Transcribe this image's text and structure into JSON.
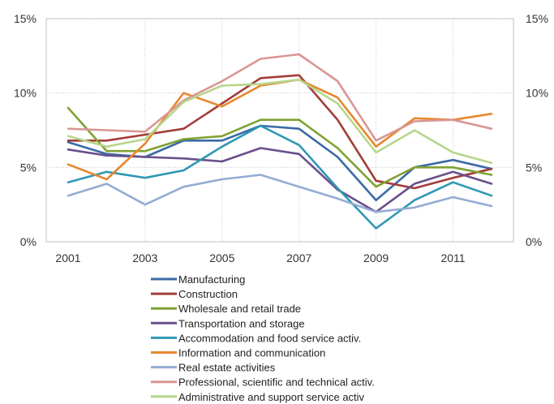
{
  "chart_data": {
    "type": "line",
    "title": "",
    "xlabel": "",
    "ylabel": "",
    "x": [
      2001,
      2002,
      2003,
      2004,
      2005,
      2006,
      2007,
      2008,
      2009,
      2010,
      2011,
      2012
    ],
    "xticks": [
      2001,
      2003,
      2005,
      2007,
      2009,
      2011
    ],
    "xtick_labels": [
      "2001",
      "2003",
      "2005",
      "2007",
      "2009",
      "2011"
    ],
    "ylim": [
      0,
      15
    ],
    "yticks": [
      0,
      5,
      10,
      15
    ],
    "ytick_labels": [
      "0%",
      "5%",
      "10%",
      "15%"
    ],
    "secondary_ytick_labels": [
      "0%",
      "5%",
      "10%",
      "15%"
    ],
    "grid": "dotted",
    "legend_position": "bottom",
    "series": [
      {
        "name": "Manufacturing",
        "color": "#3a6aa5",
        "values": [
          6.7,
          5.9,
          5.7,
          6.8,
          6.8,
          7.8,
          7.6,
          5.7,
          2.8,
          5.0,
          5.5,
          4.9
        ]
      },
      {
        "name": "Construction",
        "color": "#a33c38",
        "values": [
          6.8,
          6.8,
          7.2,
          7.6,
          9.3,
          11.0,
          11.2,
          8.2,
          4.1,
          3.6,
          4.3,
          4.9
        ]
      },
      {
        "name": "Wholesale and retail trade",
        "color": "#7fa233",
        "values": [
          9.0,
          6.1,
          6.1,
          6.9,
          7.1,
          8.2,
          8.2,
          6.3,
          3.7,
          5.0,
          5.0,
          4.5
        ]
      },
      {
        "name": "Transportation and storage",
        "color": "#6a4f8c",
        "values": [
          6.2,
          5.8,
          5.7,
          5.6,
          5.4,
          6.3,
          5.9,
          3.5,
          2.0,
          3.9,
          4.7,
          3.9
        ]
      },
      {
        "name": "Accommodation and food service activ.",
        "color": "#2f98b4",
        "values": [
          4.0,
          4.7,
          4.3,
          4.8,
          6.4,
          7.8,
          6.5,
          3.6,
          0.9,
          2.8,
          4.0,
          3.1
        ]
      },
      {
        "name": "Information and communication",
        "color": "#e8872f",
        "values": [
          5.2,
          4.2,
          6.6,
          10.0,
          9.1,
          10.5,
          10.9,
          9.7,
          6.4,
          8.3,
          8.2,
          8.6
        ]
      },
      {
        "name": "Real estate activities",
        "color": "#94acd4",
        "values": [
          3.1,
          3.9,
          2.5,
          3.7,
          4.2,
          4.5,
          3.7,
          2.9,
          2.0,
          2.3,
          3.0,
          2.4
        ]
      },
      {
        "name": "Professional, scientific and technical activ.",
        "color": "#d99694",
        "values": [
          7.6,
          7.5,
          7.4,
          9.5,
          10.8,
          12.3,
          12.6,
          10.8,
          6.8,
          8.1,
          8.2,
          7.6
        ]
      },
      {
        "name": "Administrative and support service activ",
        "color": "#b7d68c",
        "values": [
          7.1,
          6.4,
          6.9,
          9.4,
          10.5,
          10.6,
          10.9,
          9.3,
          6.0,
          7.5,
          6.0,
          5.3
        ]
      }
    ]
  }
}
